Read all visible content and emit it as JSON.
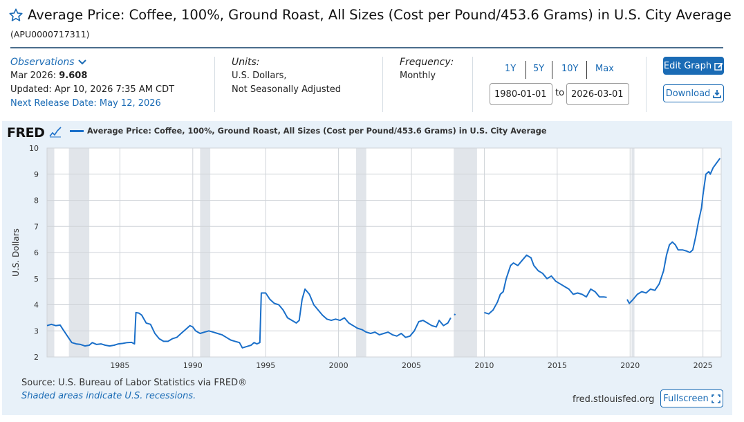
{
  "header": {
    "title": "Average Price: Coffee, 100%, Ground Roast, All Sizes (Cost per Pound/453.6 Grams) in U.S. City Average",
    "series_id": "(APU0000717311)"
  },
  "observations": {
    "heading": "Observations",
    "date": "Mar 2026:",
    "value": "9.608",
    "updated": "Updated: Apr 10, 2026 7:35 AM CDT",
    "next_release": "Next Release Date: May 12, 2026"
  },
  "units": {
    "heading": "Units:",
    "line1": "U.S. Dollars,",
    "line2": "Not Seasonally Adjusted"
  },
  "frequency": {
    "heading": "Frequency:",
    "value": "Monthly"
  },
  "range": {
    "buttons": [
      "1Y",
      "5Y",
      "10Y",
      "Max"
    ],
    "start": "1980-01-01",
    "to": "to",
    "end": "2026-03-01"
  },
  "actions": {
    "edit": "Edit Graph",
    "download": "Download",
    "fullscreen": "Fullscreen"
  },
  "graph": {
    "logo": "FRED",
    "source": "Source: U.S. Bureau of Labor Statistics via FRED®",
    "shaded_note": "Shaded areas indicate U.S. recessions.",
    "url": "fred.stlouisfed.org"
  },
  "colors": {
    "line": "#1a6fc9",
    "recession": "#e1e5ea",
    "accent": "#1a6bb5"
  },
  "chart_data": {
    "type": "line",
    "title": "",
    "ylabel": "U.S. Dollars",
    "xlabel": "",
    "ylim": [
      2,
      10
    ],
    "xlim": [
      1980.0,
      2026.25
    ],
    "x_ticks": [
      1985,
      1990,
      1995,
      2000,
      2005,
      2010,
      2015,
      2020,
      2025
    ],
    "y_ticks": [
      2,
      3,
      4,
      5,
      6,
      7,
      8,
      9,
      10
    ],
    "grid": true,
    "legend": "top-left",
    "recessions": [
      [
        1980.0,
        1980.5
      ],
      [
        1981.5,
        1982.9
      ],
      [
        1990.5,
        1991.2
      ],
      [
        2001.2,
        2001.9
      ],
      [
        2007.9,
        2009.5
      ],
      [
        2020.1,
        2020.3
      ]
    ],
    "series": [
      {
        "name": "Average Price: Coffee, 100%, Ground Roast, All Sizes (Cost per Pound/453.6 Grams) in U.S. City Average",
        "segments": [
          [
            [
              1980.0,
              3.2
            ],
            [
              1980.3,
              3.25
            ],
            [
              1980.6,
              3.2
            ],
            [
              1980.9,
              3.22
            ],
            [
              1981.1,
              3.05
            ],
            [
              1981.4,
              2.8
            ],
            [
              1981.7,
              2.55
            ],
            [
              1982.0,
              2.5
            ],
            [
              1982.3,
              2.48
            ],
            [
              1982.6,
              2.42
            ],
            [
              1982.9,
              2.45
            ],
            [
              1983.1,
              2.55
            ],
            [
              1983.4,
              2.48
            ],
            [
              1983.7,
              2.5
            ],
            [
              1984.0,
              2.45
            ],
            [
              1984.3,
              2.42
            ],
            [
              1984.6,
              2.45
            ],
            [
              1984.9,
              2.5
            ],
            [
              1985.2,
              2.52
            ],
            [
              1985.5,
              2.55
            ],
            [
              1985.8,
              2.56
            ],
            [
              1986.0,
              2.5
            ],
            [
              1986.1,
              3.7
            ],
            [
              1986.3,
              3.68
            ],
            [
              1986.5,
              3.6
            ],
            [
              1986.8,
              3.3
            ],
            [
              1987.1,
              3.25
            ],
            [
              1987.4,
              2.9
            ],
            [
              1987.7,
              2.7
            ],
            [
              1988.0,
              2.6
            ],
            [
              1988.3,
              2.6
            ],
            [
              1988.6,
              2.7
            ],
            [
              1988.9,
              2.75
            ],
            [
              1989.2,
              2.9
            ],
            [
              1989.5,
              3.05
            ],
            [
              1989.8,
              3.2
            ],
            [
              1990.0,
              3.15
            ],
            [
              1990.2,
              3.0
            ],
            [
              1990.5,
              2.9
            ],
            [
              1990.8,
              2.95
            ],
            [
              1991.1,
              3.0
            ],
            [
              1991.4,
              2.95
            ],
            [
              1991.7,
              2.9
            ],
            [
              1992.0,
              2.85
            ],
            [
              1992.3,
              2.75
            ],
            [
              1992.6,
              2.65
            ],
            [
              1992.9,
              2.6
            ],
            [
              1993.2,
              2.55
            ],
            [
              1993.4,
              2.35
            ],
            [
              1993.7,
              2.4
            ],
            [
              1994.0,
              2.45
            ],
            [
              1994.2,
              2.55
            ],
            [
              1994.4,
              2.5
            ],
            [
              1994.6,
              2.55
            ],
            [
              1994.7,
              4.45
            ],
            [
              1995.0,
              4.45
            ],
            [
              1995.3,
              4.2
            ],
            [
              1995.6,
              4.05
            ],
            [
              1995.9,
              4.0
            ],
            [
              1996.2,
              3.8
            ],
            [
              1996.5,
              3.5
            ],
            [
              1996.8,
              3.4
            ],
            [
              1997.1,
              3.3
            ],
            [
              1997.3,
              3.4
            ],
            [
              1997.5,
              4.2
            ],
            [
              1997.7,
              4.6
            ],
            [
              1998.0,
              4.4
            ],
            [
              1998.3,
              4.0
            ],
            [
              1998.6,
              3.8
            ],
            [
              1998.9,
              3.6
            ],
            [
              1999.2,
              3.45
            ],
            [
              1999.5,
              3.4
            ],
            [
              1999.8,
              3.45
            ],
            [
              2000.1,
              3.4
            ],
            [
              2000.4,
              3.5
            ],
            [
              2000.7,
              3.3
            ],
            [
              2001.0,
              3.2
            ],
            [
              2001.3,
              3.1
            ],
            [
              2001.6,
              3.05
            ],
            [
              2001.9,
              2.95
            ],
            [
              2002.2,
              2.9
            ],
            [
              2002.5,
              2.95
            ],
            [
              2002.8,
              2.85
            ],
            [
              2003.1,
              2.9
            ],
            [
              2003.4,
              2.95
            ],
            [
              2003.7,
              2.85
            ],
            [
              2004.0,
              2.8
            ],
            [
              2004.3,
              2.9
            ],
            [
              2004.6,
              2.75
            ],
            [
              2004.9,
              2.8
            ],
            [
              2005.2,
              3.0
            ],
            [
              2005.5,
              3.35
            ],
            [
              2005.8,
              3.4
            ],
            [
              2006.1,
              3.3
            ],
            [
              2006.4,
              3.2
            ],
            [
              2006.7,
              3.15
            ],
            [
              2006.9,
              3.4
            ],
            [
              2007.2,
              3.2
            ],
            [
              2007.5,
              3.3
            ],
            [
              2007.7,
              3.5
            ]
          ],
          [
            [
              2007.95,
              3.6
            ],
            [
              2008.0,
              3.65
            ]
          ],
          [
            [
              2010.0,
              3.7
            ],
            [
              2010.3,
              3.65
            ],
            [
              2010.6,
              3.8
            ],
            [
              2010.9,
              4.1
            ],
            [
              2011.1,
              4.4
            ],
            [
              2011.3,
              4.5
            ],
            [
              2011.5,
              5.0
            ],
            [
              2011.8,
              5.5
            ],
            [
              2012.0,
              5.6
            ],
            [
              2012.3,
              5.5
            ],
            [
              2012.6,
              5.7
            ],
            [
              2012.9,
              5.9
            ],
            [
              2013.2,
              5.8
            ],
            [
              2013.4,
              5.5
            ],
            [
              2013.7,
              5.3
            ],
            [
              2014.0,
              5.2
            ],
            [
              2014.3,
              5.0
            ],
            [
              2014.6,
              5.1
            ],
            [
              2014.9,
              4.9
            ],
            [
              2015.2,
              4.8
            ],
            [
              2015.5,
              4.7
            ],
            [
              2015.8,
              4.6
            ],
            [
              2016.1,
              4.4
            ],
            [
              2016.4,
              4.45
            ],
            [
              2016.7,
              4.4
            ],
            [
              2017.0,
              4.3
            ],
            [
              2017.3,
              4.6
            ],
            [
              2017.6,
              4.5
            ],
            [
              2017.9,
              4.3
            ],
            [
              2018.2,
              4.3
            ],
            [
              2018.4,
              4.28
            ]
          ],
          [
            [
              2019.8,
              4.2
            ],
            [
              2019.95,
              4.05
            ],
            [
              2020.2,
              4.2
            ],
            [
              2020.5,
              4.4
            ],
            [
              2020.8,
              4.5
            ],
            [
              2021.1,
              4.45
            ],
            [
              2021.4,
              4.6
            ],
            [
              2021.7,
              4.55
            ],
            [
              2022.0,
              4.8
            ],
            [
              2022.3,
              5.3
            ],
            [
              2022.5,
              5.9
            ],
            [
              2022.7,
              6.3
            ],
            [
              2022.9,
              6.4
            ],
            [
              2023.1,
              6.3
            ],
            [
              2023.3,
              6.1
            ],
            [
              2023.6,
              6.1
            ],
            [
              2023.9,
              6.05
            ],
            [
              2024.1,
              6.0
            ],
            [
              2024.3,
              6.1
            ],
            [
              2024.5,
              6.6
            ],
            [
              2024.7,
              7.2
            ],
            [
              2024.9,
              7.7
            ],
            [
              2025.0,
              8.2
            ],
            [
              2025.2,
              9.0
            ],
            [
              2025.4,
              9.1
            ],
            [
              2025.5,
              9.0
            ],
            [
              2025.7,
              9.25
            ],
            [
              2025.9,
              9.4
            ],
            [
              2026.17,
              9.608
            ]
          ]
        ]
      }
    ]
  }
}
